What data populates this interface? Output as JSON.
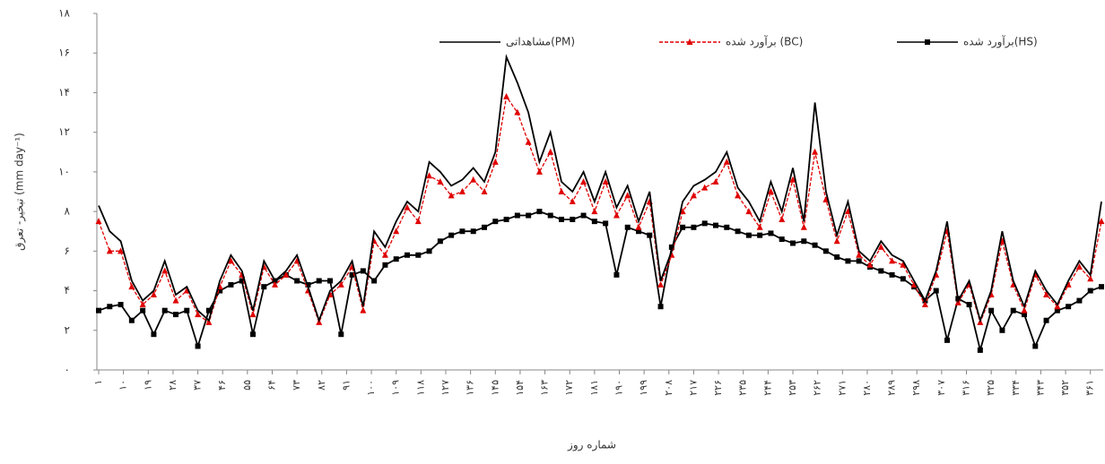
{
  "chart_data": {
    "type": "line",
    "x_label": "شماره روز",
    "y_label": "تبخیر- تعرق (mm day⁻¹)",
    "x": [
      1,
      5,
      9,
      13,
      17,
      21,
      25,
      29,
      33,
      37,
      41,
      45,
      49,
      53,
      57,
      61,
      65,
      69,
      73,
      77,
      81,
      85,
      89,
      93,
      97,
      101,
      105,
      109,
      113,
      117,
      121,
      125,
      129,
      133,
      137,
      141,
      145,
      149,
      153,
      157,
      161,
      165,
      169,
      173,
      177,
      181,
      185,
      189,
      193,
      197,
      201,
      205,
      209,
      213,
      217,
      221,
      225,
      229,
      233,
      237,
      241,
      245,
      249,
      253,
      257,
      261,
      265,
      269,
      273,
      277,
      281,
      285,
      289,
      293,
      297,
      301,
      305,
      309,
      313,
      317,
      321,
      325,
      329,
      333,
      337,
      341,
      345,
      349,
      353,
      357,
      361,
      365
    ],
    "series": [
      {
        "name": "مشاهداتی(PM)",
        "color": "#000000",
        "dash": false,
        "marker": null,
        "values": [
          8.3,
          7,
          6.5,
          4.5,
          3.5,
          4,
          5.5,
          3.8,
          4.2,
          3,
          2.5,
          4.5,
          5.8,
          5,
          3,
          5.5,
          4.5,
          5,
          5.8,
          4.2,
          2.5,
          4,
          4.5,
          5.5,
          3.2,
          7,
          6.2,
          7.5,
          8.5,
          8,
          10.5,
          10,
          9.3,
          9.6,
          10.2,
          9.5,
          11,
          15.8,
          14.5,
          13,
          10.5,
          12,
          9.5,
          9,
          10,
          8.5,
          10,
          8.2,
          9.3,
          7.5,
          9,
          4.5,
          6,
          8.5,
          9.3,
          9.6,
          10,
          11,
          9.2,
          8.5,
          7.5,
          9.5,
          8,
          10.2,
          7.5,
          13.5,
          9,
          6.8,
          8.5,
          6,
          5.5,
          6.5,
          5.8,
          5.5,
          4.5,
          3.5,
          5,
          7.5,
          3.5,
          4.5,
          2.5,
          4,
          7,
          4.5,
          3.2,
          5,
          4,
          3.3,
          4.5,
          5.5,
          4.8,
          8.5
        ]
      },
      {
        "name": "برآورد شده (BC)",
        "color": "#e00000",
        "dash": true,
        "marker": "triangle",
        "values": [
          7.5,
          6,
          6,
          4.2,
          3.3,
          3.8,
          5,
          3.5,
          4,
          2.8,
          2.4,
          4.2,
          5.5,
          4.8,
          2.8,
          5.2,
          4.3,
          4.8,
          5.5,
          4,
          2.4,
          3.8,
          4.3,
          5.2,
          3,
          6.5,
          5.8,
          7,
          8.2,
          7.5,
          9.8,
          9.5,
          8.8,
          9,
          9.6,
          9,
          10.5,
          13.8,
          13,
          11.5,
          10,
          11,
          9,
          8.5,
          9.5,
          8,
          9.5,
          7.8,
          8.8,
          7.2,
          8.5,
          4.3,
          5.8,
          8,
          8.8,
          9.2,
          9.5,
          10.5,
          8.8,
          8,
          7.2,
          9,
          7.6,
          9.6,
          7.2,
          11,
          8.6,
          6.5,
          8,
          5.8,
          5.3,
          6.2,
          5.5,
          5.3,
          4.3,
          3.3,
          4.8,
          7,
          3.4,
          4.3,
          2.4,
          3.8,
          6.5,
          4.3,
          3,
          4.8,
          3.8,
          3.2,
          4.3,
          5.2,
          4.6,
          7.5
        ]
      },
      {
        "name": "برآورد شده(HS)",
        "color": "#000000",
        "dash": false,
        "marker": "square",
        "values": [
          3,
          3.2,
          3.3,
          2.5,
          3,
          1.8,
          3,
          2.8,
          3,
          1.2,
          3,
          4,
          4.3,
          4.5,
          1.8,
          4.2,
          4.5,
          4.8,
          4.5,
          4.3,
          4.5,
          4.5,
          1.8,
          4.8,
          5,
          4.5,
          5.3,
          5.6,
          5.8,
          5.8,
          6,
          6.5,
          6.8,
          7,
          7,
          7.2,
          7.5,
          7.6,
          7.8,
          7.8,
          8,
          7.8,
          7.6,
          7.6,
          7.8,
          7.5,
          7.4,
          4.8,
          7.2,
          7,
          6.8,
          3.2,
          6.2,
          7.2,
          7.2,
          7.4,
          7.3,
          7.2,
          7,
          6.8,
          6.8,
          6.9,
          6.6,
          6.4,
          6.5,
          6.3,
          6,
          5.7,
          5.5,
          5.5,
          5.2,
          5,
          4.8,
          4.6,
          4.2,
          3.5,
          4,
          1.5,
          3.6,
          3.3,
          1,
          3,
          2,
          3,
          2.8,
          1.2,
          2.5,
          3,
          3.2,
          3.5,
          4,
          4.2
        ]
      }
    ],
    "xlim": [
      1,
      365
    ],
    "xticks": [
      {
        "value": 1,
        "label": "۱"
      },
      {
        "value": 10,
        "label": "۱۰"
      },
      {
        "value": 19,
        "label": "۱۹"
      },
      {
        "value": 28,
        "label": "۲۸"
      },
      {
        "value": 37,
        "label": "۳۷"
      },
      {
        "value": 46,
        "label": "۴۶"
      },
      {
        "value": 55,
        "label": "۵۵"
      },
      {
        "value": 64,
        "label": "۶۴"
      },
      {
        "value": 73,
        "label": "۷۳"
      },
      {
        "value": 82,
        "label": "۸۲"
      },
      {
        "value": 91,
        "label": "۹۱"
      },
      {
        "value": 100,
        "label": "۱۰۰"
      },
      {
        "value": 109,
        "label": "۱۰۹"
      },
      {
        "value": 118,
        "label": "۱۱۸"
      },
      {
        "value": 127,
        "label": "۱۲۷"
      },
      {
        "value": 136,
        "label": "۱۳۶"
      },
      {
        "value": 145,
        "label": "۱۴۵"
      },
      {
        "value": 154,
        "label": "۱۵۴"
      },
      {
        "value": 163,
        "label": "۱۶۳"
      },
      {
        "value": 172,
        "label": "۱۷۲"
      },
      {
        "value": 181,
        "label": "۱۸۱"
      },
      {
        "value": 190,
        "label": "۱۹۰"
      },
      {
        "value": 199,
        "label": "۱۹۹"
      },
      {
        "value": 208,
        "label": "۲۰۸"
      },
      {
        "value": 217,
        "label": "۲۱۷"
      },
      {
        "value": 226,
        "label": "۲۲۶"
      },
      {
        "value": 235,
        "label": "۲۳۵"
      },
      {
        "value": 244,
        "label": "۲۴۴"
      },
      {
        "value": 253,
        "label": "۲۵۳"
      },
      {
        "value": 262,
        "label": "۲۶۲"
      },
      {
        "value": 271,
        "label": "۲۷۱"
      },
      {
        "value": 280,
        "label": "۲۸۰"
      },
      {
        "value": 289,
        "label": "۲۸۹"
      },
      {
        "value": 298,
        "label": "۲۹۸"
      },
      {
        "value": 307,
        "label": "۳۰۷"
      },
      {
        "value": 316,
        "label": "۳۱۶"
      },
      {
        "value": 325,
        "label": "۳۲۵"
      },
      {
        "value": 334,
        "label": "۳۳۴"
      },
      {
        "value": 343,
        "label": "۳۴۳"
      },
      {
        "value": 352,
        "label": "۳۵۲"
      },
      {
        "value": 361,
        "label": "۳۶۱"
      }
    ],
    "ylim": [
      0,
      18
    ],
    "yticks": [
      {
        "value": 0,
        "label": "۰"
      },
      {
        "value": 2,
        "label": "۲"
      },
      {
        "value": 4,
        "label": "۴"
      },
      {
        "value": 6,
        "label": "۶"
      },
      {
        "value": 8,
        "label": "۸"
      },
      {
        "value": 10,
        "label": "۱۰"
      },
      {
        "value": 12,
        "label": "۱۲"
      },
      {
        "value": 14,
        "label": "۱۴"
      },
      {
        "value": 16,
        "label": "۱۶"
      },
      {
        "value": 18,
        "label": "۱۸"
      }
    ],
    "grid": false,
    "legend": "top"
  }
}
